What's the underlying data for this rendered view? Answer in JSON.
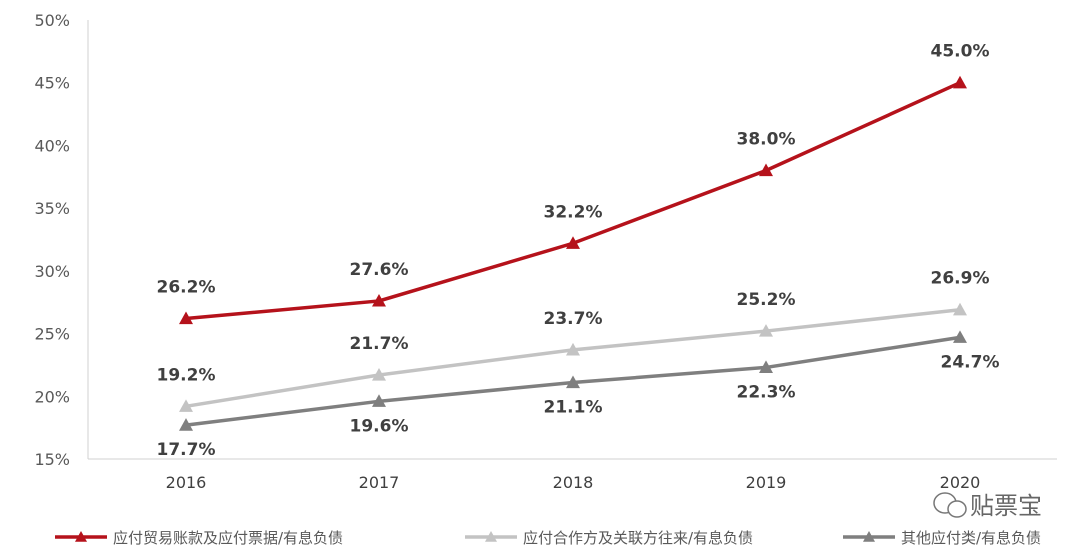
{
  "chart_data": {
    "type": "line",
    "title": "",
    "xlabel": "",
    "ylabel": "",
    "categories": [
      "2016",
      "2017",
      "2018",
      "2019",
      "2020"
    ],
    "ylim": [
      15,
      50
    ],
    "yticks": [
      "15%",
      "20%",
      "25%",
      "30%",
      "35%",
      "40%",
      "45%",
      "50%"
    ],
    "grid": false,
    "legend_placement": "bottom",
    "series": [
      {
        "name": "应付贸易账款及应付票据/有息负债",
        "values": [
          26.2,
          27.6,
          32.2,
          38.0,
          45.0
        ],
        "labels": [
          "26.2%",
          "27.6%",
          "32.2%",
          "38.0%",
          "45.0%"
        ],
        "color": "#b5121b",
        "label_position": "above"
      },
      {
        "name": "应付合作方及关联方往来/有息负债",
        "values": [
          19.2,
          21.7,
          23.7,
          25.2,
          26.9
        ],
        "labels": [
          "19.2%",
          "21.7%",
          "23.7%",
          "25.2%",
          "26.9%"
        ],
        "color": "#c3c3c3",
        "label_position": "above"
      },
      {
        "name": "其他应付类/有息负债",
        "values": [
          17.7,
          19.6,
          21.1,
          22.3,
          24.7
        ],
        "labels": [
          "17.7%",
          "19.6%",
          "21.1%",
          "22.3%",
          "24.7%"
        ],
        "color": "#7f7f7f",
        "label_position": "below"
      }
    ],
    "marker": "triangle"
  },
  "watermark": {
    "text": "贴票宝",
    "icon": "wechat-icon"
  }
}
